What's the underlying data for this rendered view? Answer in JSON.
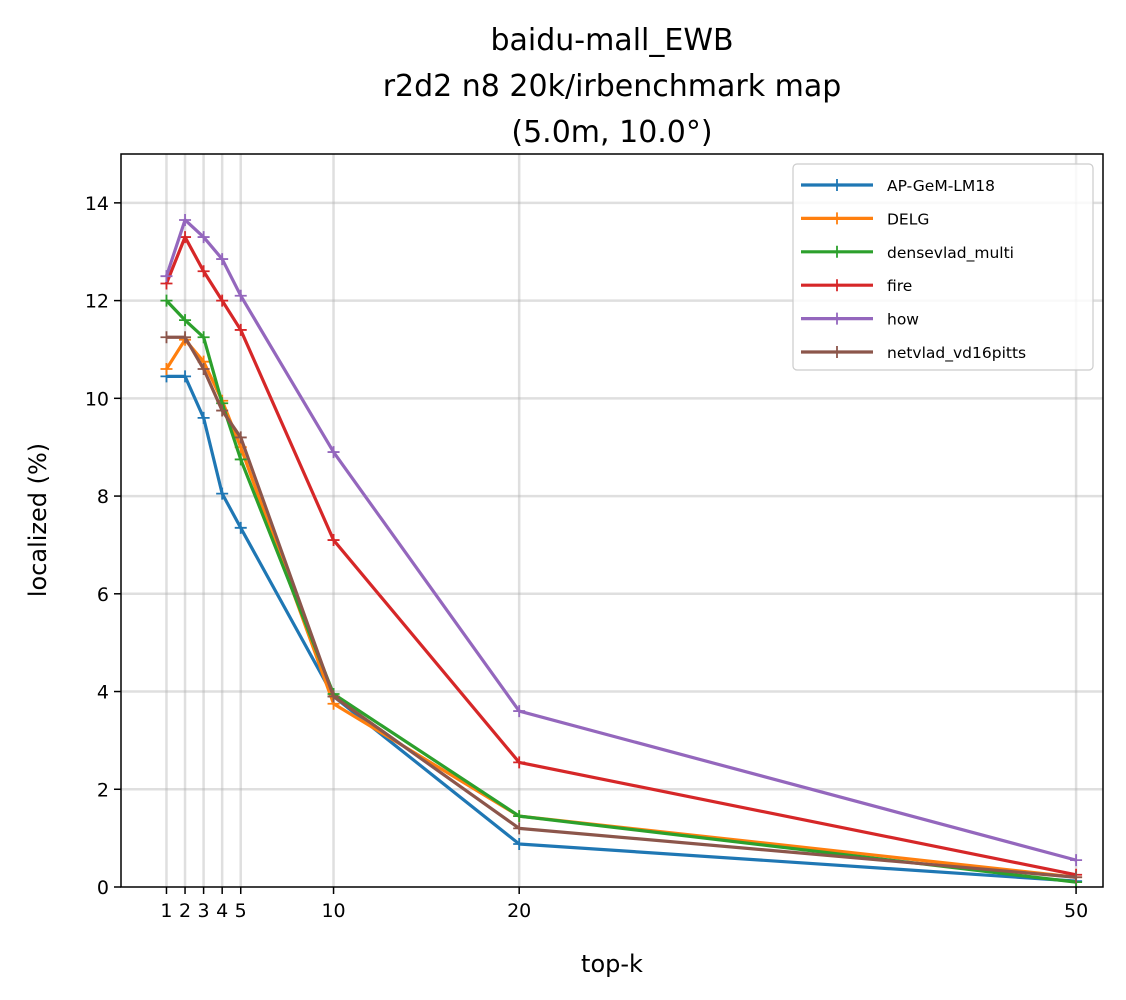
{
  "chart_data": {
    "type": "line",
    "title": [
      "baidu-mall_EWB",
      "r2d2 n8 20k/irbenchmark map",
      "(5.0m, 10.0°)"
    ],
    "xlabel": "top-k",
    "ylabel": "localized (%)",
    "x": [
      1,
      2,
      3,
      4,
      5,
      10,
      20,
      50
    ],
    "xticks": [
      "1",
      "2",
      "3",
      "4",
      "5",
      "10",
      "20",
      "50"
    ],
    "yticks": [
      "0",
      "2",
      "4",
      "6",
      "8",
      "10",
      "12",
      "14"
    ],
    "ylim": [
      0,
      15
    ],
    "grid": true,
    "legend_position": "top-right",
    "series": [
      {
        "name": "AP-GeM-LM18",
        "color": "#1f77b4",
        "values": [
          10.45,
          10.45,
          9.6,
          8.05,
          7.35,
          3.9,
          0.88,
          0.12
        ]
      },
      {
        "name": "DELG",
        "color": "#ff7f0e",
        "values": [
          10.6,
          11.2,
          10.75,
          9.95,
          9.0,
          3.75,
          1.45,
          0.2
        ]
      },
      {
        "name": "densevlad_multi",
        "color": "#2ca02c",
        "values": [
          12.0,
          11.6,
          11.25,
          9.9,
          8.75,
          3.95,
          1.45,
          0.1
        ]
      },
      {
        "name": "fire",
        "color": "#d62728",
        "values": [
          12.35,
          13.3,
          12.6,
          12.0,
          11.4,
          7.1,
          2.55,
          0.25
        ]
      },
      {
        "name": "how",
        "color": "#9467bd",
        "values": [
          12.5,
          13.65,
          13.3,
          12.85,
          12.1,
          8.9,
          3.6,
          0.55
        ]
      },
      {
        "name": "netvlad_vd16pitts",
        "color": "#8c564b",
        "values": [
          11.25,
          11.25,
          10.6,
          9.75,
          9.2,
          3.9,
          1.2,
          0.2
        ]
      }
    ]
  }
}
